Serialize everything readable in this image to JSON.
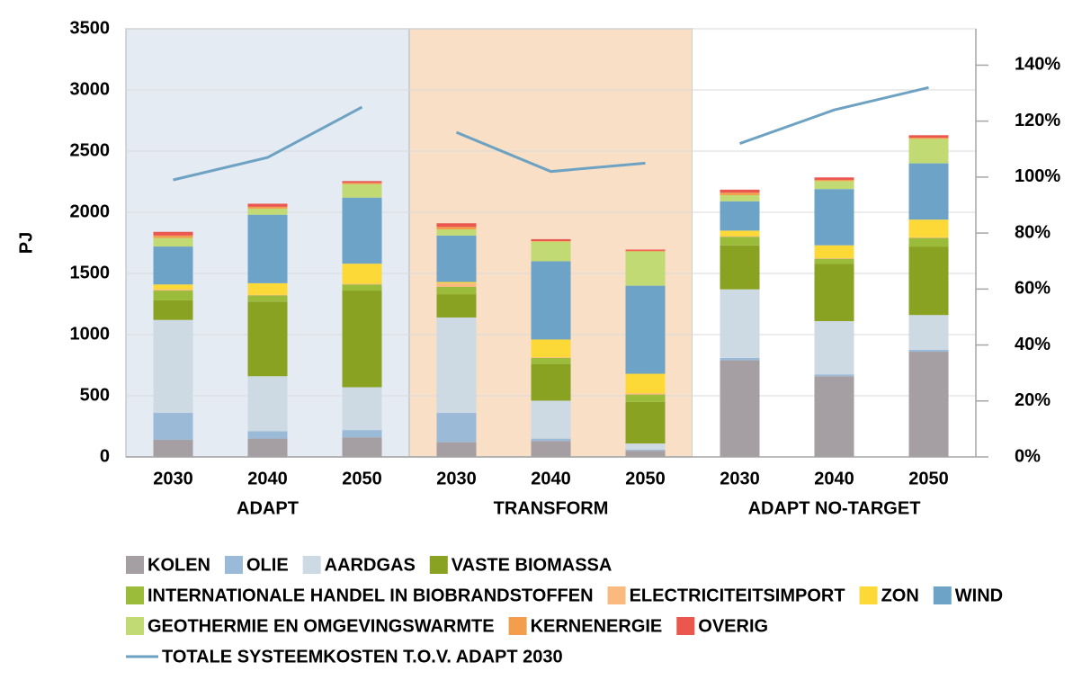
{
  "chart_data": {
    "type": "bar",
    "stacked": true,
    "ylabel": "PJ",
    "groups": [
      {
        "name": "ADAPT",
        "color": "#6fa3c7",
        "background": "#e5ebf2",
        "categories": [
          "2030",
          "2040",
          "2050"
        ]
      },
      {
        "name": "TRANSFORM",
        "color": "#f08a2c",
        "background": "#f9dfc6",
        "categories": [
          "2030",
          "2040",
          "2050"
        ]
      },
      {
        "name": "ADAPT NO-TARGET",
        "color": "#000000",
        "background": "#ffffff",
        "categories": [
          "2030",
          "2040",
          "2050"
        ]
      }
    ],
    "ylim": [
      0,
      3500
    ],
    "yticks": [
      0,
      500,
      1000,
      1500,
      2000,
      2500,
      3000,
      3500
    ],
    "y2lim": [
      0,
      153
    ],
    "y2ticks": [
      {
        "value": 0,
        "label": "0%"
      },
      {
        "value": 20,
        "label": "20%"
      },
      {
        "value": 40,
        "label": "40%"
      },
      {
        "value": 60,
        "label": "60%"
      },
      {
        "value": 80,
        "label": "80%"
      },
      {
        "value": 100,
        "label": "100%"
      },
      {
        "value": 120,
        "label": "120%"
      },
      {
        "value": 140,
        "label": "140%"
      }
    ],
    "grid": true,
    "legend": "bottom",
    "series": [
      {
        "name": "KOLEN",
        "color": "#a59ea2",
        "values": [
          140,
          150,
          160,
          120,
          130,
          50,
          790,
          660,
          860
        ]
      },
      {
        "name": "OLIE",
        "color": "#9bbad8",
        "values": [
          220,
          60,
          60,
          240,
          20,
          10,
          20,
          15,
          15
        ]
      },
      {
        "name": "AARDGAS",
        "color": "#cdd9e3",
        "values": [
          760,
          450,
          350,
          780,
          310,
          50,
          560,
          435,
          285
        ]
      },
      {
        "name": "VASTE BIOMASSA",
        "color": "#8aa221",
        "values": [
          160,
          610,
          790,
          190,
          300,
          340,
          360,
          470,
          560
        ]
      },
      {
        "name": "INTERNATIONALE HANDEL IN BIOBRANDSTOFFEN",
        "color": "#9bbb3a",
        "values": [
          80,
          50,
          50,
          60,
          50,
          60,
          70,
          40,
          70
        ]
      },
      {
        "name": "ELECTRICITEITSIMPORT",
        "color": "#f9b97f",
        "values": [
          10,
          5,
          5,
          30,
          5,
          10,
          5,
          5,
          5
        ]
      },
      {
        "name": "ZON",
        "color": "#fdd938",
        "values": [
          40,
          95,
          165,
          10,
          145,
          160,
          45,
          105,
          145
        ]
      },
      {
        "name": "WIND",
        "color": "#6da3c6",
        "values": [
          310,
          560,
          540,
          380,
          640,
          720,
          240,
          460,
          460
        ]
      },
      {
        "name": "GEOTHERMIE EN OMGEVINGSWARMTE",
        "color": "#c1da74",
        "values": [
          70,
          50,
          110,
          50,
          160,
          280,
          50,
          65,
          200
        ]
      },
      {
        "name": "KERNENERGIE",
        "color": "#f29e4c",
        "values": [
          20,
          15,
          10,
          20,
          5,
          5,
          20,
          10,
          10
        ]
      },
      {
        "name": "OVERIG",
        "color": "#e9574f",
        "values": [
          30,
          25,
          15,
          30,
          15,
          10,
          25,
          20,
          20
        ]
      },
      {
        "name": "TOTALE SYSTEEMKOSTEN T.O.V. ADAPT 2030",
        "type": "line",
        "axis": "y2",
        "color": "#6ea2c2",
        "values": [
          99,
          107,
          125,
          116,
          102,
          105,
          112,
          124,
          132
        ]
      }
    ]
  }
}
